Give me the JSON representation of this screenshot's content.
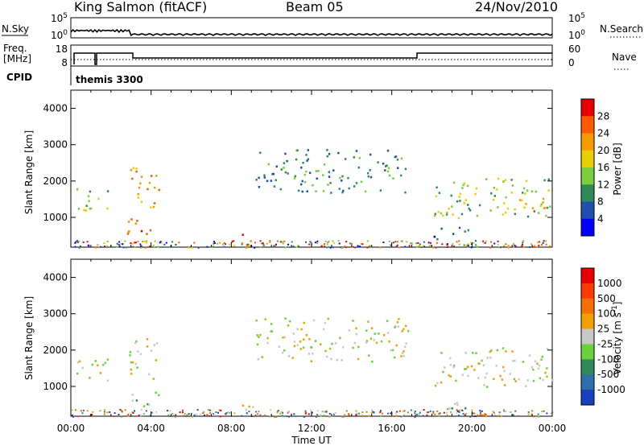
{
  "header": {
    "station": "King Salmon (fitACF)",
    "beam": "Beam 05",
    "date": "24/Nov/2010"
  },
  "top_panels": {
    "nsky_label": "N.Sky",
    "nsearch_label": "N.Search",
    "noise_ticks_left": [
      "10^5",
      "10^0"
    ],
    "noise_ticks_right": [
      "10^5",
      "10^0"
    ],
    "freq_label_line1": "Freq.",
    "freq_label_line2": "[MHz]",
    "freq_ticks": [
      "18",
      "8"
    ],
    "nave_label": "Nave",
    "nave_ticks": [
      "60",
      "0"
    ],
    "cpid_label": "CPID",
    "cpid_value": "themis 3300"
  },
  "chart_data": [
    {
      "type": "heatmap",
      "name": "power",
      "ylabel": "Slant Range [km]",
      "xlabel": "Time UT",
      "ylim": [
        180,
        4500
      ],
      "yticks": [
        "1000",
        "2000",
        "3000",
        "4000"
      ],
      "xticks": [
        "00:00",
        "04:00",
        "08:00",
        "12:00",
        "16:00",
        "20:00",
        "00:00"
      ],
      "colorbar": {
        "label": "Power [dB]",
        "ticks": [
          "4",
          "8",
          "12",
          "16",
          "20",
          "24",
          "28"
        ],
        "colors": [
          "#0000ff",
          "#1f4fb0",
          "#2e8b57",
          "#7ccd3c",
          "#e8d000",
          "#f59a00",
          "#ff5a00",
          "#e80000"
        ]
      },
      "regions": [
        {
          "t0": 0.2,
          "t1": 2.0,
          "r0": 1150,
          "r1": 1800,
          "level": 3
        },
        {
          "t0": 2.9,
          "t1": 4.4,
          "r0": 1200,
          "r1": 2400,
          "level": 5
        },
        {
          "t0": 2.8,
          "t1": 4.4,
          "r0": 450,
          "r1": 1000,
          "level": 6
        },
        {
          "t0": 9.2,
          "t1": 16.8,
          "r0": 1700,
          "r1": 2900,
          "level": 2
        },
        {
          "t0": 18.0,
          "t1": 24.0,
          "r0": 1000,
          "r1": 2100,
          "level": 3
        },
        {
          "t0": 22.2,
          "t1": 24.0,
          "r0": 1100,
          "r1": 1600,
          "level": 5
        },
        {
          "t0": 18.0,
          "t1": 19.8,
          "r0": 400,
          "r1": 750,
          "level": 1
        },
        {
          "t0": 8.3,
          "t1": 9.3,
          "r0": 200,
          "r1": 550,
          "level": 6
        }
      ]
    },
    {
      "type": "heatmap",
      "name": "velocity",
      "ylabel": "Slant Range [km]",
      "xlabel": "Time UT",
      "ylim": [
        180,
        4500
      ],
      "yticks": [
        "1000",
        "2000",
        "3000",
        "4000"
      ],
      "xticks": [
        "00:00",
        "04:00",
        "08:00",
        "12:00",
        "16:00",
        "20:00",
        "00:00"
      ],
      "colorbar": {
        "label": "Velocity [m s^-1]",
        "ticks": [
          "1000",
          "500",
          "100",
          "25",
          "-25",
          "-100",
          "-500",
          "-1000"
        ],
        "colors": [
          "#1a3fbf",
          "#2e6fae",
          "#2e8b57",
          "#6ad23a",
          "#c8c8c8",
          "#f0a000",
          "#f57000",
          "#ff3a00",
          "#e80000"
        ]
      },
      "regions": [
        {
          "t0": 0.2,
          "t1": 2.0,
          "r0": 1150,
          "r1": 1800,
          "level": 4
        },
        {
          "t0": 2.9,
          "t1": 4.4,
          "r0": 1200,
          "r1": 2400,
          "level": 4
        },
        {
          "t0": 2.8,
          "t1": 4.4,
          "r0": 450,
          "r1": 900,
          "level": 3
        },
        {
          "t0": 9.2,
          "t1": 16.8,
          "r0": 1700,
          "r1": 2900,
          "level": 4
        },
        {
          "t0": 18.0,
          "t1": 24.0,
          "r0": 1000,
          "r1": 2100,
          "level": 4
        },
        {
          "t0": 18.0,
          "t1": 19.8,
          "r0": 400,
          "r1": 750,
          "level": 3
        },
        {
          "t0": 8.3,
          "t1": 9.3,
          "r0": 200,
          "r1": 550,
          "level": 5
        }
      ]
    }
  ]
}
